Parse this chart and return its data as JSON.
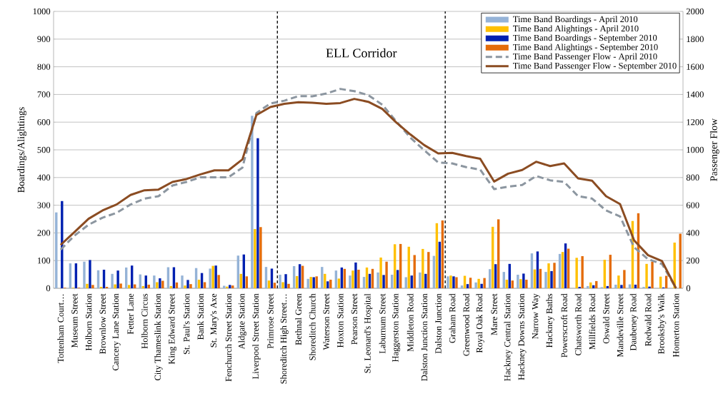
{
  "chart_data": {
    "type": "bar",
    "categories": [
      "Tottenham Court…",
      "Museum Street",
      "Holborn Station",
      "Brownlow Street",
      "Cancery Lane Station",
      "Fetter Lane",
      "Holborn Circus",
      "City Thameslink Station",
      "King Edward Street",
      "St. Paul's Station",
      "Bank Station",
      "St. Mary's Axe",
      "Fenchurch Street Station",
      "Aldgate Station",
      "Liverpool Street Station",
      "Primrose Street",
      "Shoreditch High Street…",
      "Bethnal Green",
      "Shoreditch Church",
      "Waterson Street",
      "Hoxton Station",
      "Pearson Street",
      "St. Leonard's Hospital",
      "Laburnum Street",
      "Haggerston Station",
      "Middleton Road",
      "Dalston Junction Station",
      "Dalston Junction",
      "Graham Road",
      "Greenwood Road",
      "Royal Oak Road",
      "Mare Street",
      "Hackney Central Station",
      "Hackney Downs Station",
      "Narrow Way",
      "Hackney Baths",
      "Powerscroft Road",
      "Chatsworth Road",
      "Millfields Road",
      "Oswald Street",
      "Mandeville Street",
      "Daubeney Road",
      "Redwald Road",
      "Brooksby's Walk",
      "Homerton Station"
    ],
    "series": [
      {
        "name": "Time Band Boardings - April 2010",
        "color": "#95b3d7",
        "values": [
          274,
          90,
          96,
          65,
          52,
          75,
          50,
          46,
          76,
          46,
          73,
          71,
          9,
          118,
          623,
          77,
          49,
          80,
          34,
          77,
          64,
          46,
          41,
          57,
          49,
          40,
          57,
          117,
          43,
          10,
          21,
          69,
          59,
          49,
          126,
          59,
          124,
          null,
          8,
          4,
          13,
          14,
          5,
          null,
          0
        ]
      },
      {
        "name": "Time Band Alightings - April 2010",
        "color": "#ffc000",
        "values": [
          null,
          2,
          16,
          5,
          14,
          12,
          8,
          22,
          8,
          10,
          31,
          81,
          6,
          52,
          214,
          28,
          22,
          44,
          41,
          52,
          35,
          64,
          75,
          111,
          159,
          150,
          142,
          235,
          46,
          45,
          34,
          222,
          31,
          33,
          68,
          90,
          131,
          110,
          21,
          103,
          46,
          243,
          88,
          42,
          165
        ]
      },
      {
        "name": "Time Band Boardings - September 2010",
        "color": "#0020b0",
        "values": [
          315,
          90,
          102,
          67,
          64,
          82,
          46,
          36,
          76,
          30,
          55,
          82,
          12,
          122,
          542,
          71,
          51,
          87,
          40,
          25,
          75,
          93,
          52,
          48,
          66,
          46,
          52,
          168,
          43,
          15,
          16,
          87,
          88,
          53,
          133,
          62,
          162,
          5,
          11,
          8,
          12,
          13,
          6,
          3,
          0
        ]
      },
      {
        "name": "Time Band Alightings - September 2010",
        "color": "#e46c0a",
        "values": [
          2,
          2,
          12,
          5,
          17,
          14,
          13,
          27,
          21,
          15,
          22,
          48,
          10,
          43,
          221,
          20,
          16,
          81,
          43,
          31,
          70,
          67,
          70,
          96,
          160,
          120,
          131,
          245,
          40,
          38,
          37,
          249,
          28,
          31,
          70,
          92,
          143,
          116,
          26,
          121,
          66,
          271,
          96,
          45,
          197
        ]
      },
      {
        "name": "Time Band Passenger Flow - April 2010",
        "type": "line",
        "axis": "y2",
        "line_style": "dashed",
        "color": "#8c96a0",
        "values": [
          278,
          381,
          459,
          510,
          545,
          605,
          648,
          665,
          742,
          768,
          802,
          802,
          802,
          871,
          1266,
          1335,
          1355,
          1388,
          1387,
          1407,
          1440,
          1424,
          1395,
          1326,
          1206,
          1089,
          997,
          909,
          902,
          875,
          857,
          716,
          734,
          746,
          811,
          780,
          768,
          665,
          648,
          562,
          519,
          296,
          210,
          175,
          0
        ]
      },
      {
        "name": "Time Band Passenger Flow - September 2010",
        "type": "line",
        "axis": "y2",
        "line_style": "solid",
        "color": "#8b4c22",
        "values": [
          313,
          407,
          502,
          562,
          605,
          674,
          708,
          713,
          768,
          789,
          823,
          852,
          852,
          931,
          1251,
          1309,
          1332,
          1344,
          1340,
          1332,
          1338,
          1368,
          1347,
          1296,
          1198,
          1112,
          1034,
          974,
          978,
          955,
          936,
          771,
          828,
          854,
          914,
          883,
          902,
          794,
          777,
          665,
          608,
          347,
          239,
          196,
          0
        ]
      }
    ],
    "ylabel": "Boardings/Alightings",
    "y2label": "Passenger Flow",
    "ylim": [
      0,
      1000
    ],
    "yticks": [
      0,
      100,
      200,
      300,
      400,
      500,
      600,
      700,
      800,
      900,
      1000
    ],
    "y2lim": [
      0,
      2000
    ],
    "y2ticks": [
      0,
      200,
      400,
      600,
      800,
      1000,
      1200,
      1400,
      1600,
      1800,
      2000
    ],
    "annotations": [
      "ELL Corridor"
    ],
    "grid": "y",
    "legend": "top right"
  }
}
